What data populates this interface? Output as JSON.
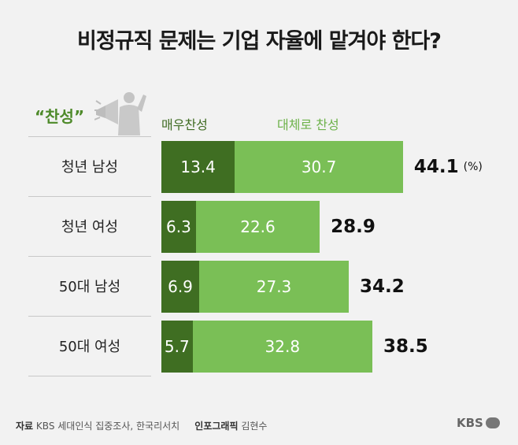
{
  "title": "비정규직 문제는 기업 자율에 맡겨야 한다?",
  "support_label": "“찬성”",
  "legend": {
    "strong": "매우찬성",
    "mild": "대체로 찬성"
  },
  "unit": "(%)",
  "colors": {
    "strong": "#3f6e22",
    "mild": "#7abf56",
    "accent": "#4e8a2a"
  },
  "chart_data": {
    "type": "bar",
    "orientation": "horizontal",
    "stacked": true,
    "categories": [
      "청년 남성",
      "청년 여성",
      "50대 남성",
      "50대 여성"
    ],
    "series": [
      {
        "name": "매우찬성",
        "values": [
          13.4,
          6.3,
          6.9,
          5.7
        ]
      },
      {
        "name": "대체로 찬성",
        "values": [
          30.7,
          22.6,
          27.3,
          32.8
        ]
      }
    ],
    "totals": [
      "44.1",
      "28.9",
      "34.2",
      "38.5"
    ],
    "value_labels": {
      "strong": [
        "13.4",
        "6.3",
        "6.9",
        "5.7"
      ],
      "mild": [
        "30.7",
        "22.6",
        "27.3",
        "32.8"
      ]
    },
    "title": "비정규직 문제는 기업 자율에 맡겨야 한다?"
  },
  "footer": {
    "source_label": "자료",
    "source_text": "KBS 세대인식 집중조사, 한국리서치",
    "graphic_label": "인포그래픽",
    "graphic_text": "김현수"
  },
  "logo": "KBS"
}
